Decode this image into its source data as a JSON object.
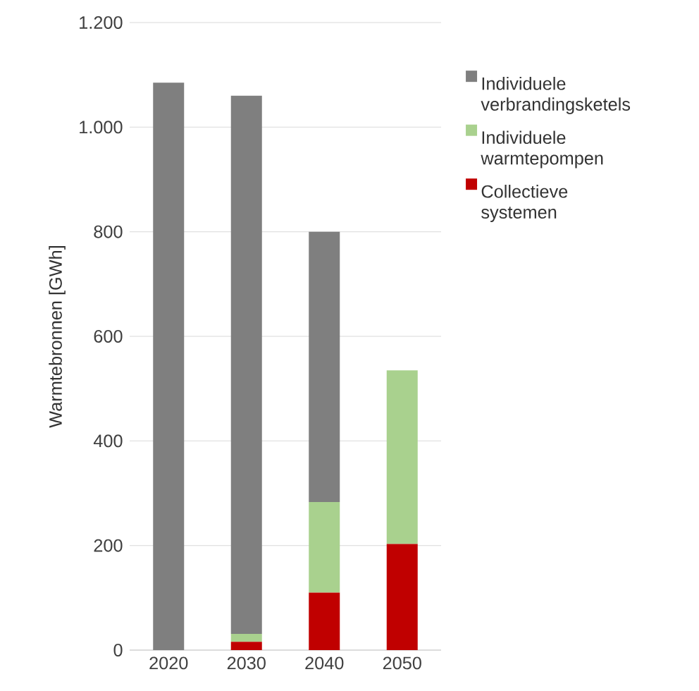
{
  "chart_data": {
    "type": "bar",
    "stacked": true,
    "ylabel": "Warmtebronnen [GWh]",
    "categories": [
      "2020",
      "2030",
      "2040",
      "2050"
    ],
    "series": [
      {
        "name": "Collectieve systemen",
        "color": "#c00000",
        "values": [
          0,
          16,
          110,
          203
        ]
      },
      {
        "name": "Individuele warmtepompen",
        "color": "#a9d18e",
        "values": [
          0,
          15,
          173,
          332
        ]
      },
      {
        "name": "Individuele verbrandingsketels",
        "color": "#7f7f7f",
        "values": [
          1085,
          1029,
          517,
          0
        ]
      }
    ],
    "ylim": [
      0,
      1200
    ],
    "yticks": [
      0,
      200,
      400,
      600,
      800,
      {
        "value": 1000,
        "label": "1.000"
      },
      {
        "value": 1200,
        "label": "1.200"
      }
    ],
    "grid": "y",
    "legend": "right"
  }
}
